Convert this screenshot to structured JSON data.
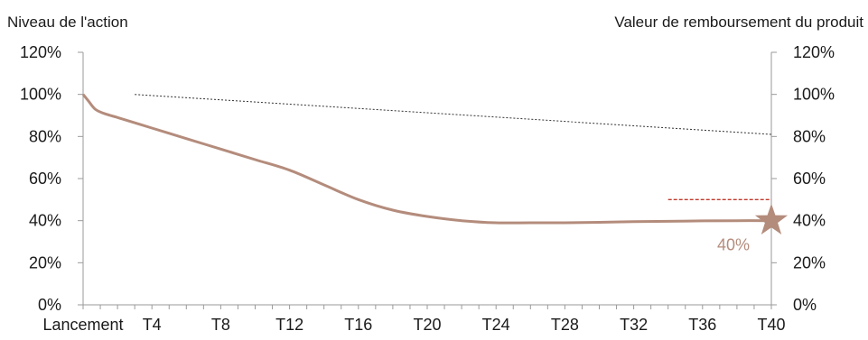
{
  "chart_data": {
    "type": "line",
    "left_axis_title": "Niveau de l'action",
    "right_axis_title": "Valeur de remboursement du produit",
    "ylim": [
      0,
      120
    ],
    "ytick_labels": [
      "0%",
      "20%",
      "40%",
      "60%",
      "80%",
      "100%",
      "120%"
    ],
    "ytick_values": [
      0,
      20,
      40,
      60,
      80,
      100,
      120
    ],
    "xlim": [
      0,
      40
    ],
    "xtick_labels": [
      "Lancement",
      "T4",
      "T8",
      "T12",
      "T16",
      "T20",
      "T24",
      "T28",
      "T32",
      "T36",
      "T40"
    ],
    "xtick_values": [
      0,
      4,
      8,
      12,
      16,
      20,
      24,
      28,
      32,
      36,
      40
    ],
    "series": [
      {
        "name": "",
        "style": "solid",
        "color": "#b48c7c",
        "points": [
          [
            0,
            100
          ],
          [
            0.3,
            97
          ],
          [
            0.7,
            93
          ],
          [
            1.2,
            91
          ],
          [
            2,
            89
          ],
          [
            4,
            84
          ],
          [
            6,
            79
          ],
          [
            8,
            74
          ],
          [
            10,
            69
          ],
          [
            12,
            64
          ],
          [
            14,
            57
          ],
          [
            16,
            50
          ],
          [
            18,
            45
          ],
          [
            20,
            42
          ],
          [
            22,
            40
          ],
          [
            24,
            39
          ],
          [
            26,
            39
          ],
          [
            28,
            39
          ],
          [
            30,
            39.2
          ],
          [
            32,
            39.5
          ],
          [
            34,
            39.7
          ],
          [
            36,
            39.9
          ],
          [
            38,
            40
          ],
          [
            40,
            40
          ]
        ]
      },
      {
        "name": "",
        "style": "dotted",
        "color": "#333333",
        "points": [
          [
            3,
            100
          ],
          [
            40,
            81
          ]
        ]
      },
      {
        "name": "",
        "style": "dashed",
        "color": "#c0392b",
        "points": [
          [
            34,
            50
          ],
          [
            40,
            50
          ]
        ]
      }
    ],
    "marker": {
      "shape": "star",
      "x": 40,
      "y": 40,
      "color": "#b48c7c"
    },
    "annotation": {
      "text": "40%",
      "color": "#b48c7c",
      "x": 40,
      "y": 40
    },
    "grid": false
  }
}
